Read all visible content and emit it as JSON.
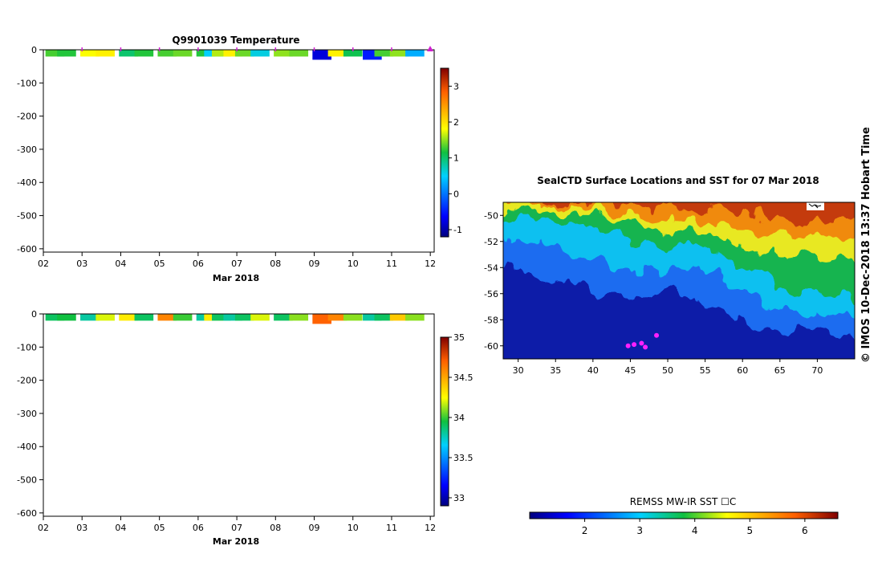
{
  "chart_data": [
    {
      "type": "heatmap",
      "title": "Q9901039  Temperature",
      "xlabel": "Mar 2018",
      "x_ticks": [
        "02",
        "03",
        "04",
        "05",
        "06",
        "07",
        "08",
        "09",
        "10",
        "11",
        "12"
      ],
      "y_ticks": [
        "0",
        "-100",
        "-200",
        "-300",
        "-400",
        "-500",
        "-600"
      ],
      "ylim": [
        -610,
        0
      ],
      "colorbar_ticks": [
        "3",
        "2",
        "1",
        "0",
        "-1"
      ],
      "colorbar_range": [
        -1.2,
        3.5
      ],
      "profile_days": [
        2.3,
        2.6,
        3.2,
        3.6,
        4.2,
        4.6,
        5.2,
        5.6,
        6.2,
        6.4,
        6.6,
        6.9,
        7.2,
        7.6,
        8.2,
        8.6,
        9.2,
        9.6,
        10.0,
        10.5,
        10.8,
        11.2,
        11.6
      ],
      "profile_values": [
        1.3,
        1.2,
        1.8,
        1.9,
        1.0,
        1.2,
        1.3,
        1.4,
        1.2,
        0.5,
        1.6,
        1.9,
        1.4,
        0.6,
        1.5,
        1.4,
        -0.8,
        1.9,
        1.1,
        -0.5,
        1.3,
        1.5,
        0.3
      ],
      "markers": "magenta triangles at surface"
    },
    {
      "type": "heatmap",
      "title": "",
      "xlabel": "Mar 2018",
      "x_ticks": [
        "02",
        "03",
        "04",
        "05",
        "06",
        "07",
        "08",
        "09",
        "10",
        "11",
        "12"
      ],
      "y_ticks": [
        "0",
        "-100",
        "-200",
        "-300",
        "-400",
        "-500",
        "-600"
      ],
      "ylim": [
        -610,
        0
      ],
      "colorbar_ticks": [
        "35",
        "34.5",
        "34",
        "33.5",
        "33"
      ],
      "colorbar_range": [
        32.9,
        35.0
      ],
      "profile_days": [
        2.3,
        2.6,
        3.2,
        3.6,
        4.2,
        4.6,
        5.2,
        5.6,
        6.2,
        6.4,
        6.6,
        6.9,
        7.2,
        7.6,
        8.2,
        8.6,
        9.2,
        9.6,
        10.0,
        10.5,
        10.8,
        11.2,
        11.6
      ],
      "profile_values": [
        33.9,
        33.95,
        33.8,
        34.2,
        34.3,
        33.9,
        34.6,
        34.0,
        33.8,
        34.3,
        33.9,
        33.8,
        33.9,
        34.2,
        33.9,
        34.1,
        34.7,
        34.6,
        34.1,
        33.8,
        33.9,
        34.4,
        34.1
      ]
    },
    {
      "type": "heatmap",
      "title": "SealCTD Surface Locations and SST for 07 Mar 2018",
      "x_ticks": [
        "30",
        "35",
        "40",
        "45",
        "50",
        "55",
        "60",
        "65",
        "70"
      ],
      "y_ticks": [
        "-50",
        "-52",
        "-54",
        "-56",
        "-58",
        "-60"
      ],
      "xlim": [
        28,
        75
      ],
      "ylim": [
        -61,
        -49
      ],
      "colorbar_label": "REMSS MW-IR SST ☐C",
      "colorbar_ticks": [
        "2",
        "3",
        "4",
        "5",
        "6"
      ],
      "colorbar_range": [
        1.0,
        6.6
      ],
      "seal_locations": [
        {
          "lon": 44.7,
          "lat": -60.0
        },
        {
          "lon": 45.5,
          "lat": -59.9
        },
        {
          "lon": 46.5,
          "lat": -59.8
        },
        {
          "lon": 47.0,
          "lat": -60.1
        },
        {
          "lon": 48.5,
          "lat": -59.2
        }
      ]
    }
  ],
  "stamp": "©  IMOS 10-Dec-2018 13:37 Hobart Time"
}
